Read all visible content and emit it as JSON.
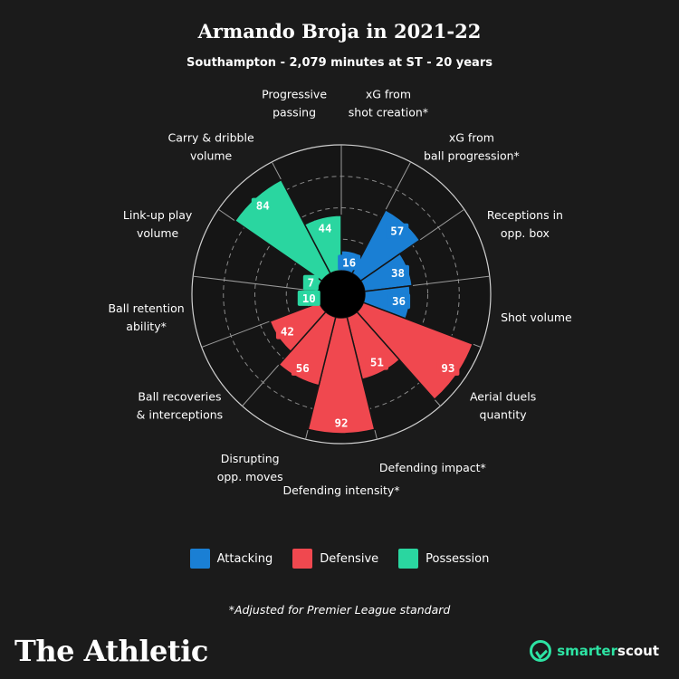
{
  "header": {
    "title": "Armando Broja in 2021-22",
    "subtitle": "Southampton - 2,079 minutes at ST - 20 years"
  },
  "legend": [
    {
      "label": "Attacking",
      "color": "#1a7fd4"
    },
    {
      "label": "Defensive",
      "color": "#f0484f"
    },
    {
      "label": "Possession",
      "color": "#2ad6a0"
    }
  ],
  "footnote": "*Adjusted for Premier League standard",
  "brand": {
    "name": "The Athletic",
    "partner_smart": "smarter",
    "partner_scout": "scout"
  },
  "chart_data": {
    "type": "pie",
    "subtype": "polar-area",
    "range": [
      0,
      100
    ],
    "colors": {
      "Attacking": "#1a7fd4",
      "Defensive": "#f0484f",
      "Possession": "#2ad6a0"
    },
    "categories": [
      {
        "label": [
          "xG from",
          "shot creation*"
        ],
        "value": 16,
        "group": "Attacking"
      },
      {
        "label": [
          "xG from",
          "ball progression*"
        ],
        "value": 57,
        "group": "Attacking"
      },
      {
        "label": [
          "Receptions in",
          "opp. box"
        ],
        "value": 38,
        "group": "Attacking"
      },
      {
        "label": [
          "Shot volume"
        ],
        "value": 36,
        "group": "Attacking"
      },
      {
        "label": [
          "Aerial duels",
          "quantity"
        ],
        "value": 93,
        "group": "Defensive"
      },
      {
        "label": [
          "Defending impact*"
        ],
        "value": 51,
        "group": "Defensive"
      },
      {
        "label": [
          "Defending intensity*"
        ],
        "value": 92,
        "group": "Defensive"
      },
      {
        "label": [
          "Disrupting",
          "opp. moves"
        ],
        "value": 56,
        "group": "Defensive"
      },
      {
        "label": [
          "Ball recoveries",
          "& interceptions"
        ],
        "value": 42,
        "group": "Defensive"
      },
      {
        "label": [
          "Ball retention",
          "ability*"
        ],
        "value": 10,
        "group": "Possession"
      },
      {
        "label": [
          "Link-up play",
          "volume"
        ],
        "value": 7,
        "group": "Possession"
      },
      {
        "label": [
          "Carry & dribble",
          "volume"
        ],
        "value": 84,
        "group": "Possession"
      },
      {
        "label": [
          "Progressive",
          "passing"
        ],
        "value": 44,
        "group": "Possession"
      }
    ]
  }
}
